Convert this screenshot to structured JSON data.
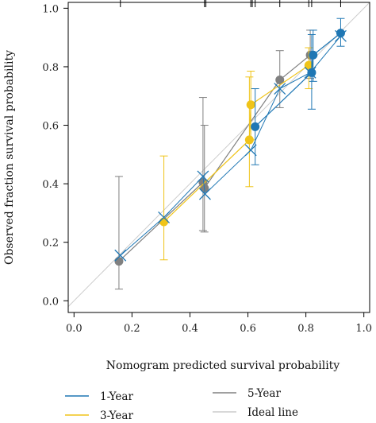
{
  "chart_data": {
    "type": "scatter",
    "xlabel": "Nomogram predicted survival probability",
    "ylabel": "Observed fraction survival probability",
    "xlim": [
      -0.02,
      1.02
    ],
    "ylim": [
      -0.04,
      1.02
    ],
    "xticks": [
      "0.0",
      "0.2",
      "0.4",
      "0.6",
      "0.8",
      "1.0"
    ],
    "yticks": [
      "0.0",
      "0.2",
      "0.4",
      "0.6",
      "0.8",
      "1.0"
    ],
    "grid": false,
    "legend_position": "bottom",
    "rug_top": [
      0.16,
      0.45,
      0.455,
      0.61,
      0.615,
      0.625,
      0.71,
      0.81,
      0.82,
      0.92
    ],
    "ideal_line": {
      "name": "Ideal line",
      "color": "#cccccc",
      "x": [
        0,
        1
      ],
      "y": [
        0,
        1
      ]
    },
    "series": [
      {
        "name": "1-Year",
        "color": "#1f77b4",
        "points": [
          {
            "x": 0.625,
            "y": 0.595,
            "lo": 0.465,
            "hi": 0.725
          },
          {
            "x": 0.82,
            "y": 0.78,
            "lo": 0.655,
            "hi": 0.91
          },
          {
            "x": 0.825,
            "y": 0.84,
            "lo": 0.75,
            "hi": 0.925
          },
          {
            "x": 0.92,
            "y": 0.915,
            "lo": 0.87,
            "hi": 0.965
          }
        ],
        "corrected": [
          {
            "x": 0.16,
            "y": 0.155
          },
          {
            "x": 0.31,
            "y": 0.285
          },
          {
            "x": 0.445,
            "y": 0.425
          },
          {
            "x": 0.452,
            "y": 0.365
          },
          {
            "x": 0.61,
            "y": 0.515
          },
          {
            "x": 0.71,
            "y": 0.725
          },
          {
            "x": 0.815,
            "y": 0.78
          },
          {
            "x": 0.92,
            "y": 0.905
          }
        ]
      },
      {
        "name": "3-Year",
        "color": "#f0c419",
        "points": [
          {
            "x": 0.31,
            "y": 0.27,
            "lo": 0.14,
            "hi": 0.495
          },
          {
            "x": 0.605,
            "y": 0.55,
            "lo": 0.39,
            "hi": 0.765
          },
          {
            "x": 0.61,
            "y": 0.67,
            "lo": 0.55,
            "hi": 0.785
          },
          {
            "x": 0.81,
            "y": 0.805,
            "lo": 0.725,
            "hi": 0.865
          }
        ]
      },
      {
        "name": "5-Year",
        "color": "#808080",
        "points": [
          {
            "x": 0.155,
            "y": 0.135,
            "lo": 0.04,
            "hi": 0.425
          },
          {
            "x": 0.445,
            "y": 0.405,
            "lo": 0.24,
            "hi": 0.695
          },
          {
            "x": 0.45,
            "y": 0.385,
            "lo": 0.235,
            "hi": 0.6
          },
          {
            "x": 0.71,
            "y": 0.755,
            "lo": 0.66,
            "hi": 0.855
          },
          {
            "x": 0.815,
            "y": 0.84,
            "lo": 0.76,
            "hi": 0.925
          }
        ]
      }
    ]
  }
}
